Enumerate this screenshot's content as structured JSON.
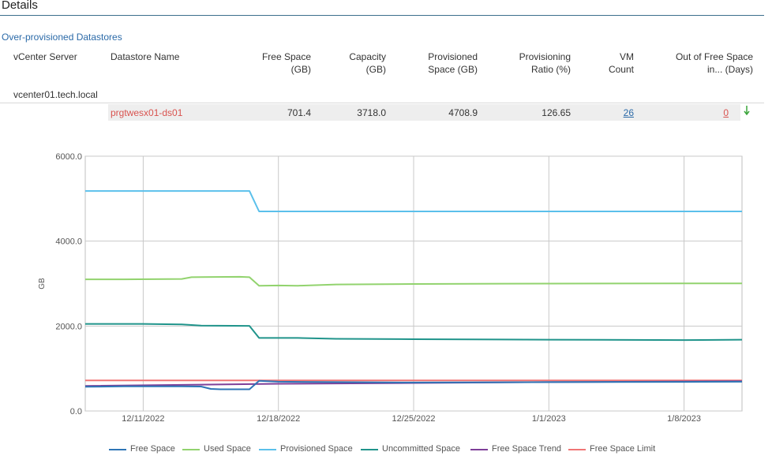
{
  "page": {
    "title": "Details",
    "section_title": "Over-provisioned Datastores"
  },
  "table": {
    "headers": [
      {
        "key": "vcenter",
        "l1": "vCenter Server",
        "l2": ""
      },
      {
        "key": "datastore",
        "l1": "Datastore Name",
        "l2": ""
      },
      {
        "key": "free",
        "l1": "Free Space",
        "l2": "(GB)"
      },
      {
        "key": "capacity",
        "l1": "Capacity",
        "l2": "(GB)"
      },
      {
        "key": "provisioned",
        "l1": "Provisioned",
        "l2": "Space (GB)"
      },
      {
        "key": "ratio",
        "l1": "Provisioning",
        "l2": "Ratio (%)"
      },
      {
        "key": "vmcount",
        "l1": "VM",
        "l2": "Count"
      },
      {
        "key": "days",
        "l1": "Out of Free Space",
        "l2": "in... (Days)"
      }
    ],
    "vcenter_server": "vcenter01.tech.local",
    "row": {
      "datastore_name": "prgtwesx01-ds01",
      "free_space": "701.4",
      "capacity": "3718.0",
      "provisioned_space": "4708.9",
      "provisioning_ratio": "126.65",
      "vm_count": "26",
      "out_of_free_space_days": "0",
      "trend_icon": "arrow-down-icon"
    }
  },
  "chart_data": {
    "type": "line",
    "title": "",
    "xlabel": "",
    "ylabel": "GB",
    "ylim": [
      0,
      6000
    ],
    "yticks": [
      0,
      2000,
      4000,
      6000
    ],
    "ytick_labels": [
      "0.0",
      "2000.0",
      "4000.0",
      "6000.0"
    ],
    "xlim": [
      "2022-12-08",
      "2023-01-11"
    ],
    "xticks": [
      "2022-12-11",
      "2022-12-18",
      "2022-12-25",
      "2023-01-01",
      "2023-01-08"
    ],
    "xtick_labels": [
      "12/11/2022",
      "12/18/2022",
      "12/25/2022",
      "1/1/2023",
      "1/8/2023"
    ],
    "grid": true,
    "legend_position": "bottom",
    "series": [
      {
        "name": "Free Space",
        "color": "#2e75b6",
        "points": [
          [
            "2022-12-08",
            570
          ],
          [
            "2022-12-10",
            580
          ],
          [
            "2022-12-13",
            580
          ],
          [
            "2022-12-14",
            575
          ],
          [
            "2022-12-14 12:00",
            520
          ],
          [
            "2022-12-15",
            510
          ],
          [
            "2022-12-16",
            510
          ],
          [
            "2022-12-16 12:00",
            510
          ],
          [
            "2022-12-17",
            710
          ],
          [
            "2022-12-18",
            690
          ],
          [
            "2022-12-21",
            680
          ],
          [
            "2022-12-25",
            670
          ],
          [
            "2023-01-01",
            680
          ],
          [
            "2023-01-08",
            685
          ],
          [
            "2023-01-11",
            690
          ]
        ]
      },
      {
        "name": "Used Space",
        "color": "#92d36e",
        "points": [
          [
            "2022-12-08",
            3100
          ],
          [
            "2022-12-10",
            3100
          ],
          [
            "2022-12-13",
            3110
          ],
          [
            "2022-12-13 12:00",
            3150
          ],
          [
            "2022-12-16",
            3160
          ],
          [
            "2022-12-16 12:00",
            3150
          ],
          [
            "2022-12-17",
            2950
          ],
          [
            "2022-12-18",
            2955
          ],
          [
            "2022-12-19",
            2950
          ],
          [
            "2022-12-21",
            2980
          ],
          [
            "2022-12-25",
            2990
          ],
          [
            "2023-01-01",
            3000
          ],
          [
            "2023-01-08",
            3005
          ],
          [
            "2023-01-11",
            3005
          ]
        ]
      },
      {
        "name": "Provisioned Space",
        "color": "#5bc0eb",
        "points": [
          [
            "2022-12-08",
            5180
          ],
          [
            "2022-12-16 12:00",
            5180
          ],
          [
            "2022-12-17",
            4700
          ],
          [
            "2023-01-11",
            4700
          ]
        ]
      },
      {
        "name": "Uncommitted Space",
        "color": "#20948b",
        "points": [
          [
            "2022-12-08",
            2050
          ],
          [
            "2022-12-11",
            2050
          ],
          [
            "2022-12-13",
            2040
          ],
          [
            "2022-12-14",
            2010
          ],
          [
            "2022-12-16 12:00",
            2005
          ],
          [
            "2022-12-17",
            1720
          ],
          [
            "2022-12-19",
            1720
          ],
          [
            "2022-12-21",
            1700
          ],
          [
            "2022-12-25",
            1690
          ],
          [
            "2023-01-01",
            1680
          ],
          [
            "2023-01-08",
            1670
          ],
          [
            "2023-01-11",
            1680
          ]
        ]
      },
      {
        "name": "Free Space Trend",
        "color": "#7e3f98",
        "points": [
          [
            "2022-12-08",
            590
          ],
          [
            "2022-12-18",
            640
          ],
          [
            "2022-12-25",
            660
          ],
          [
            "2023-01-01",
            680
          ],
          [
            "2023-01-11",
            700
          ]
        ]
      },
      {
        "name": "Free Space Limit",
        "color": "#f07575",
        "points": [
          [
            "2022-12-08",
            720
          ],
          [
            "2023-01-11",
            720
          ]
        ]
      }
    ]
  }
}
